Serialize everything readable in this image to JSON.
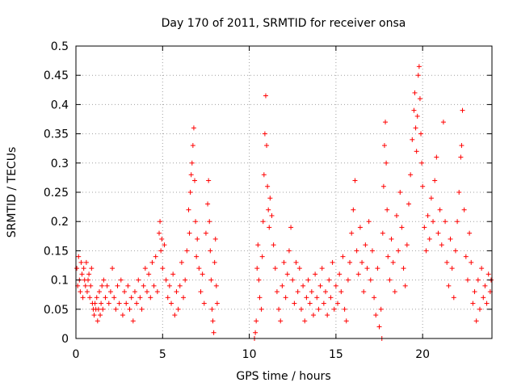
{
  "chart_data": {
    "type": "scatter",
    "title": "Day 170 of 2011, SRMTID for receiver onsa",
    "xlabel": "GPS time / hours",
    "ylabel": "SRMTID / TECUs",
    "xlim": [
      0,
      24
    ],
    "ylim": [
      0,
      0.5
    ],
    "x_ticks": [
      0,
      5,
      10,
      15,
      20
    ],
    "y_ticks": [
      0,
      0.05,
      0.1,
      0.15,
      0.2,
      0.25,
      0.3,
      0.35,
      0.4,
      0.45,
      0.5
    ],
    "x_tick_labels": [
      "0",
      "5",
      "10",
      "15",
      "20"
    ],
    "y_tick_labels": [
      "0",
      "0.05",
      "0.1",
      "0.15",
      "0.2",
      "0.25",
      "0.3",
      "0.35",
      "0.4",
      "0.45",
      "0.5"
    ],
    "grid": true,
    "marker": "plus",
    "series": [
      {
        "name": "SRMTID",
        "color": "#ff0000",
        "points": [
          [
            0.05,
            0.12
          ],
          [
            0.1,
            0.09
          ],
          [
            0.15,
            0.14
          ],
          [
            0.2,
            0.1
          ],
          [
            0.25,
            0.08
          ],
          [
            0.3,
            0.13
          ],
          [
            0.35,
            0.11
          ],
          [
            0.4,
            0.07
          ],
          [
            0.45,
            0.12
          ],
          [
            0.5,
            0.1
          ],
          [
            0.55,
            0.09
          ],
          [
            0.6,
            0.13
          ],
          [
            0.65,
            0.08
          ],
          [
            0.7,
            0.1
          ],
          [
            0.75,
            0.11
          ],
          [
            0.8,
            0.07
          ],
          [
            0.85,
            0.09
          ],
          [
            0.9,
            0.12
          ],
          [
            0.95,
            0.06
          ],
          [
            1.0,
            0.05
          ],
          [
            1.05,
            0.04
          ],
          [
            1.1,
            0.06
          ],
          [
            1.15,
            0.05
          ],
          [
            1.2,
            0.07
          ],
          [
            1.25,
            0.03
          ],
          [
            1.3,
            0.05
          ],
          [
            1.35,
            0.08
          ],
          [
            1.4,
            0.04
          ],
          [
            1.45,
            0.06
          ],
          [
            1.5,
            0.09
          ],
          [
            1.55,
            0.05
          ],
          [
            1.6,
            0.1
          ],
          [
            1.7,
            0.07
          ],
          [
            1.8,
            0.09
          ],
          [
            1.9,
            0.06
          ],
          [
            2.0,
            0.08
          ],
          [
            2.1,
            0.12
          ],
          [
            2.2,
            0.07
          ],
          [
            2.3,
            0.05
          ],
          [
            2.4,
            0.09
          ],
          [
            2.5,
            0.06
          ],
          [
            2.6,
            0.1
          ],
          [
            2.7,
            0.04
          ],
          [
            2.8,
            0.08
          ],
          [
            2.9,
            0.06
          ],
          [
            3.0,
            0.09
          ],
          [
            3.1,
            0.05
          ],
          [
            3.2,
            0.07
          ],
          [
            3.3,
            0.03
          ],
          [
            3.4,
            0.08
          ],
          [
            3.5,
            0.06
          ],
          [
            3.6,
            0.1
          ],
          [
            3.7,
            0.07
          ],
          [
            3.8,
            0.05
          ],
          [
            3.9,
            0.09
          ],
          [
            4.0,
            0.12
          ],
          [
            4.1,
            0.08
          ],
          [
            4.2,
            0.11
          ],
          [
            4.3,
            0.07
          ],
          [
            4.4,
            0.13
          ],
          [
            4.5,
            0.09
          ],
          [
            4.6,
            0.14
          ],
          [
            4.7,
            0.08
          ],
          [
            4.8,
            0.18
          ],
          [
            4.85,
            0.2
          ],
          [
            4.9,
            0.15
          ],
          [
            4.95,
            0.17
          ],
          [
            5.0,
            0.12
          ],
          [
            5.1,
            0.16
          ],
          [
            5.2,
            0.1
          ],
          [
            5.3,
            0.07
          ],
          [
            5.4,
            0.09
          ],
          [
            5.5,
            0.06
          ],
          [
            5.6,
            0.11
          ],
          [
            5.7,
            0.04
          ],
          [
            5.8,
            0.08
          ],
          [
            5.9,
            0.05
          ],
          [
            6.0,
            0.09
          ],
          [
            6.1,
            0.13
          ],
          [
            6.2,
            0.07
          ],
          [
            6.3,
            0.1
          ],
          [
            6.4,
            0.15
          ],
          [
            6.5,
            0.22
          ],
          [
            6.55,
            0.18
          ],
          [
            6.6,
            0.25
          ],
          [
            6.65,
            0.28
          ],
          [
            6.7,
            0.3
          ],
          [
            6.75,
            0.33
          ],
          [
            6.8,
            0.36
          ],
          [
            6.85,
            0.27
          ],
          [
            6.9,
            0.2
          ],
          [
            6.95,
            0.14
          ],
          [
            7.0,
            0.17
          ],
          [
            7.1,
            0.12
          ],
          [
            7.2,
            0.08
          ],
          [
            7.3,
            0.11
          ],
          [
            7.4,
            0.06
          ],
          [
            7.5,
            0.18
          ],
          [
            7.6,
            0.23
          ],
          [
            7.65,
            0.27
          ],
          [
            7.7,
            0.2
          ],
          [
            7.75,
            0.15
          ],
          [
            7.8,
            0.1
          ],
          [
            7.85,
            0.05
          ],
          [
            7.9,
            0.03
          ],
          [
            7.95,
            0.01
          ],
          [
            8.0,
            0.13
          ],
          [
            8.05,
            0.17
          ],
          [
            8.1,
            0.09
          ],
          [
            8.15,
            0.06
          ],
          [
            10.3,
            0.0
          ],
          [
            10.35,
            0.01
          ],
          [
            10.4,
            0.03
          ],
          [
            10.45,
            0.12
          ],
          [
            10.5,
            0.16
          ],
          [
            10.55,
            0.1
          ],
          [
            10.6,
            0.07
          ],
          [
            10.7,
            0.05
          ],
          [
            10.75,
            0.14
          ],
          [
            10.8,
            0.2
          ],
          [
            10.85,
            0.28
          ],
          [
            10.9,
            0.35
          ],
          [
            10.95,
            0.415
          ],
          [
            11.0,
            0.33
          ],
          [
            11.05,
            0.26
          ],
          [
            11.1,
            0.22
          ],
          [
            11.15,
            0.19
          ],
          [
            11.2,
            0.24
          ],
          [
            11.3,
            0.21
          ],
          [
            11.4,
            0.16
          ],
          [
            11.5,
            0.12
          ],
          [
            11.6,
            0.08
          ],
          [
            11.7,
            0.05
          ],
          [
            11.8,
            0.03
          ],
          [
            11.9,
            0.09
          ],
          [
            12.0,
            0.13
          ],
          [
            12.1,
            0.07
          ],
          [
            12.2,
            0.11
          ],
          [
            12.3,
            0.15
          ],
          [
            12.4,
            0.19
          ],
          [
            12.5,
            0.1
          ],
          [
            12.6,
            0.06
          ],
          [
            12.7,
            0.13
          ],
          [
            12.8,
            0.08
          ],
          [
            12.9,
            0.12
          ],
          [
            13.0,
            0.05
          ],
          [
            13.1,
            0.09
          ],
          [
            13.2,
            0.03
          ],
          [
            13.3,
            0.07
          ],
          [
            13.4,
            0.1
          ],
          [
            13.5,
            0.06
          ],
          [
            13.6,
            0.08
          ],
          [
            13.7,
            0.04
          ],
          [
            13.8,
            0.11
          ],
          [
            13.9,
            0.07
          ],
          [
            14.0,
            0.05
          ],
          [
            14.1,
            0.09
          ],
          [
            14.2,
            0.12
          ],
          [
            14.3,
            0.06
          ],
          [
            14.4,
            0.08
          ],
          [
            14.5,
            0.04
          ],
          [
            14.6,
            0.1
          ],
          [
            14.7,
            0.07
          ],
          [
            14.8,
            0.13
          ],
          [
            14.9,
            0.05
          ],
          [
            15.0,
            0.09
          ],
          [
            15.1,
            0.06
          ],
          [
            15.2,
            0.11
          ],
          [
            15.3,
            0.08
          ],
          [
            15.4,
            0.14
          ],
          [
            15.5,
            0.05
          ],
          [
            15.6,
            0.03
          ],
          [
            15.7,
            0.1
          ],
          [
            15.8,
            0.13
          ],
          [
            15.9,
            0.18
          ],
          [
            16.0,
            0.22
          ],
          [
            16.1,
            0.27
          ],
          [
            16.2,
            0.15
          ],
          [
            16.3,
            0.11
          ],
          [
            16.4,
            0.19
          ],
          [
            16.5,
            0.13
          ],
          [
            16.6,
            0.08
          ],
          [
            16.7,
            0.16
          ],
          [
            16.8,
            0.12
          ],
          [
            16.9,
            0.2
          ],
          [
            17.0,
            0.1
          ],
          [
            17.1,
            0.15
          ],
          [
            17.2,
            0.07
          ],
          [
            17.3,
            0.04
          ],
          [
            17.4,
            0.12
          ],
          [
            17.5,
            0.02
          ],
          [
            17.6,
            0.05
          ],
          [
            17.65,
            0.0
          ],
          [
            17.7,
            0.18
          ],
          [
            17.75,
            0.26
          ],
          [
            17.8,
            0.33
          ],
          [
            17.85,
            0.37
          ],
          [
            17.9,
            0.3
          ],
          [
            17.95,
            0.22
          ],
          [
            18.0,
            0.14
          ],
          [
            18.1,
            0.1
          ],
          [
            18.2,
            0.17
          ],
          [
            18.3,
            0.13
          ],
          [
            18.4,
            0.08
          ],
          [
            18.5,
            0.21
          ],
          [
            18.6,
            0.15
          ],
          [
            18.7,
            0.25
          ],
          [
            18.8,
            0.19
          ],
          [
            18.9,
            0.12
          ],
          [
            19.0,
            0.09
          ],
          [
            19.1,
            0.16
          ],
          [
            19.2,
            0.23
          ],
          [
            19.3,
            0.28
          ],
          [
            19.4,
            0.34
          ],
          [
            19.5,
            0.39
          ],
          [
            19.55,
            0.42
          ],
          [
            19.6,
            0.36
          ],
          [
            19.65,
            0.32
          ],
          [
            19.7,
            0.38
          ],
          [
            19.75,
            0.45
          ],
          [
            19.8,
            0.465
          ],
          [
            19.85,
            0.41
          ],
          [
            19.9,
            0.35
          ],
          [
            19.95,
            0.3
          ],
          [
            20.0,
            0.26
          ],
          [
            20.1,
            0.19
          ],
          [
            20.2,
            0.15
          ],
          [
            20.3,
            0.21
          ],
          [
            20.4,
            0.17
          ],
          [
            20.5,
            0.24
          ],
          [
            20.6,
            0.2
          ],
          [
            20.7,
            0.27
          ],
          [
            20.8,
            0.31
          ],
          [
            20.9,
            0.18
          ],
          [
            21.0,
            0.22
          ],
          [
            21.1,
            0.16
          ],
          [
            21.2,
            0.37
          ],
          [
            21.3,
            0.2
          ],
          [
            21.4,
            0.13
          ],
          [
            21.5,
            0.09
          ],
          [
            21.6,
            0.17
          ],
          [
            21.7,
            0.12
          ],
          [
            21.8,
            0.07
          ],
          [
            21.9,
            0.15
          ],
          [
            22.0,
            0.2
          ],
          [
            22.1,
            0.25
          ],
          [
            22.2,
            0.31
          ],
          [
            22.25,
            0.33
          ],
          [
            22.3,
            0.39
          ],
          [
            22.4,
            0.22
          ],
          [
            22.5,
            0.14
          ],
          [
            22.6,
            0.1
          ],
          [
            22.7,
            0.18
          ],
          [
            22.8,
            0.13
          ],
          [
            22.9,
            0.06
          ],
          [
            23.0,
            0.08
          ],
          [
            23.1,
            0.03
          ],
          [
            23.2,
            0.1
          ],
          [
            23.3,
            0.05
          ],
          [
            23.4,
            0.12
          ],
          [
            23.5,
            0.07
          ],
          [
            23.6,
            0.09
          ],
          [
            23.7,
            0.06
          ],
          [
            23.8,
            0.11
          ],
          [
            23.9,
            0.08
          ],
          [
            23.95,
            0.1
          ]
        ]
      }
    ]
  }
}
